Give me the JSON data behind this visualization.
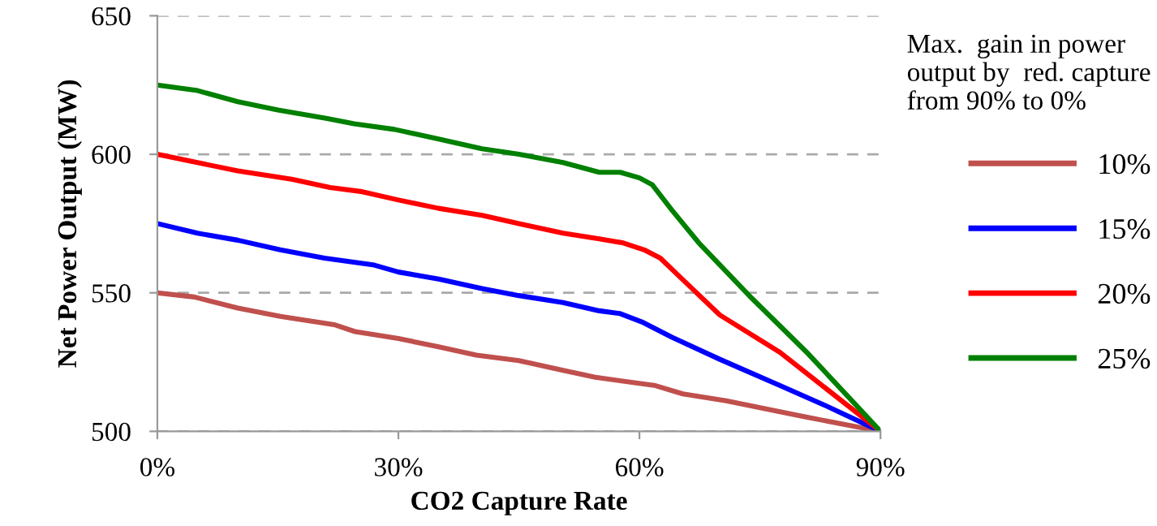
{
  "chart_data": {
    "type": "line",
    "xlabel": "CO2 Capture Rate",
    "ylabel": "Net Power Output (MW)",
    "legend_title": "Max.  gain in power\noutput by  red. capture\nfrom 90% to 0%",
    "legend": "right",
    "grid": "y",
    "line_style": "solid",
    "marker": "none",
    "xlim": [
      0,
      90
    ],
    "xticks": [
      {
        "value": 0,
        "label": "0%"
      },
      {
        "value": 30,
        "label": "30%"
      },
      {
        "value": 60,
        "label": "60%"
      },
      {
        "value": 90,
        "label": "90%"
      }
    ],
    "ylim": [
      500,
      650
    ],
    "yticks": [
      500,
      550,
      600,
      650
    ],
    "series": [
      {
        "name": "10%",
        "color": "#c0504d",
        "x": [
          0,
          4.6,
          10,
          15.3,
          22,
          24.6,
          30,
          35,
          39.7,
          45,
          50.5,
          54.5,
          62,
          65.4,
          70.8,
          81,
          90
        ],
        "values": [
          550,
          548.5,
          544.5,
          541.5,
          538.5,
          536,
          533.5,
          530.5,
          527.5,
          525.5,
          522,
          519.5,
          516.5,
          513.5,
          511,
          505,
          500
        ]
      },
      {
        "name": "15%",
        "color": "#0000ff",
        "x": [
          0,
          5,
          10,
          15.3,
          20.8,
          27,
          30,
          35,
          40.4,
          45,
          50.5,
          55,
          57.6,
          60.3,
          64,
          70,
          77.5,
          83,
          90
        ],
        "values": [
          575,
          571.5,
          569,
          565.5,
          562.5,
          560,
          557.5,
          555,
          551.5,
          549,
          546.5,
          543.5,
          542.5,
          539.5,
          534,
          526,
          516.5,
          509.5,
          500
        ]
      },
      {
        "name": "20%",
        "color": "#ff0000",
        "x": [
          0,
          10,
          16.7,
          21.5,
          25.5,
          30,
          35,
          40.4,
          45,
          50.5,
          55,
          58,
          60.6,
          62.6,
          65.3,
          70,
          77.5,
          90
        ],
        "values": [
          600,
          594,
          591,
          588,
          586.5,
          583.5,
          580.5,
          578,
          575,
          571.5,
          569.5,
          568,
          565.5,
          562.5,
          555,
          542,
          528.5,
          500
        ]
      },
      {
        "name": "25%",
        "color": "#008000",
        "x": [
          0,
          5,
          10,
          15,
          21,
          24.5,
          29.5,
          35,
          40.4,
          45,
          50.5,
          55,
          57.6,
          60,
          61.6,
          64,
          67.4,
          74,
          81,
          90
        ],
        "values": [
          625,
          623,
          619,
          616,
          613,
          611,
          609,
          605.5,
          602,
          600,
          597,
          593.5,
          593.5,
          591.5,
          589,
          580,
          568,
          548,
          528,
          500
        ]
      }
    ]
  }
}
